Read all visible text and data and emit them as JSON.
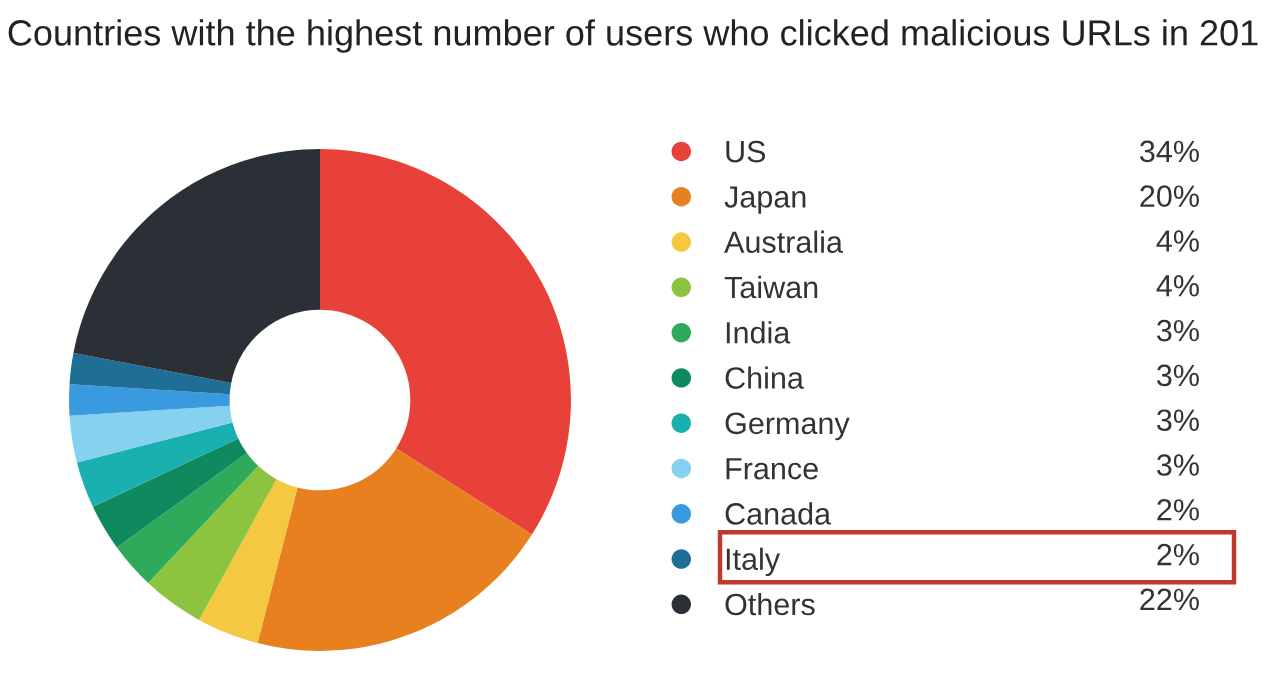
{
  "chart_data": {
    "type": "donut",
    "title": "Countries with the highest number of users who clicked malicious URLs in 201",
    "categories": [
      "US",
      "Japan",
      "Australia",
      "Taiwan",
      "India",
      "China",
      "Germany",
      "France",
      "Canada",
      "Italy",
      "Others"
    ],
    "values": [
      34,
      20,
      4,
      4,
      3,
      3,
      3,
      3,
      2,
      2,
      22
    ],
    "colors": [
      "#e8413a",
      "#e8801f",
      "#f5c842",
      "#8cc43f",
      "#2eaa5a",
      "#0f8a5f",
      "#1ab0b0",
      "#86d0f0",
      "#3a9ae0",
      "#1e6e96",
      "#2b2f36"
    ],
    "value_labels": [
      "34%",
      "20%",
      "4%",
      "4%",
      "3%",
      "3%",
      "3%",
      "3%",
      "2%",
      "2%",
      "22%"
    ],
    "legend": "right"
  }
}
